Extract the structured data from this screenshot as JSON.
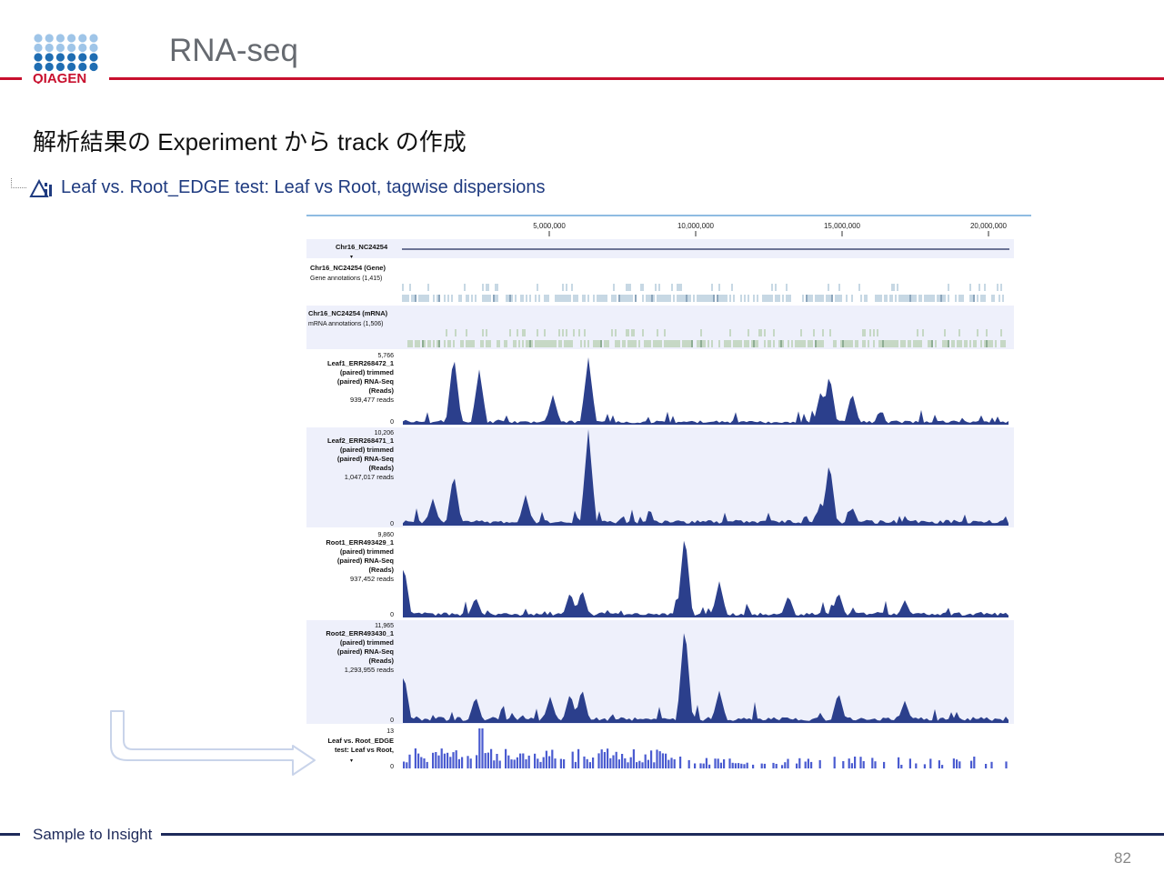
{
  "header": {
    "logo_text": "QIAGEN",
    "title": "RNA-seq"
  },
  "subtitle": "解析結果の Experiment から track の作成",
  "tree_item": {
    "icon": "experiment-icon",
    "label": "Leaf vs. Root_EDGE test: Leaf vs Root, tagwise dispersions"
  },
  "ruler": {
    "ticks": [
      "5,000,000",
      "10,000,000",
      "15,000,000",
      "20,000,000"
    ]
  },
  "tracks": {
    "chromosome": {
      "label": "Chr16_NC24254"
    },
    "gene": {
      "title": "Chr16_NC24254 (Gene)",
      "subtitle": "Gene annotations (1,415)"
    },
    "mrna": {
      "title": "Chr16_NC24254 (mRNA)",
      "subtitle": "mRNA annotations (1,506)"
    },
    "reads": [
      {
        "max": "5,766",
        "min": "0",
        "lines": [
          "Leaf1_ERR268472_1",
          "(paired) trimmed",
          "(paired) RNA-Seq",
          "(Reads)",
          "939,477 reads"
        ]
      },
      {
        "max": "10,206",
        "min": "0",
        "lines": [
          "Leaf2_ERR268471_1",
          "(paired) trimmed",
          "(paired) RNA-Seq",
          "(Reads)",
          "1,047,017 reads"
        ]
      },
      {
        "max": "9,860",
        "min": "0",
        "lines": [
          "Root1_ERR493429_1",
          "(paired) trimmed",
          "(paired) RNA-Seq",
          "(Reads)",
          "937,452 reads"
        ]
      },
      {
        "max": "11,965",
        "min": "0",
        "lines": [
          "Root2_ERR493430_1",
          "(paired) trimmed",
          "(paired) RNA-Seq",
          "(Reads)",
          "1,293,955 reads"
        ]
      }
    ],
    "experiment": {
      "max": "13",
      "min": "0",
      "lines": [
        "Leaf vs. Root_EDGE",
        "test: Leaf vs Root,"
      ]
    }
  },
  "colors": {
    "accent_red": "#c8102e",
    "navy": "#1e2a5a",
    "coverage": "#2b3f8c",
    "bars": "#4a5bd0",
    "logo_light": "#9fc5e8",
    "logo_dark": "#1f6db2"
  },
  "footer": {
    "text": "Sample to Insight",
    "page": "82"
  }
}
